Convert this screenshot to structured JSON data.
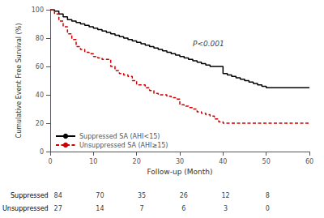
{
  "chart_data": {
    "type": "step",
    "xlabel": "Follow-up (Month)",
    "ylabel": "Cumulative Event Free Survival (%)",
    "xlim": [
      0,
      60
    ],
    "ylim": [
      0,
      100
    ],
    "xticks": [
      0,
      10,
      20,
      30,
      40,
      50,
      60
    ],
    "yticks": [
      0,
      20,
      40,
      60,
      80,
      100
    ],
    "grid": false,
    "legend": "lower left",
    "series": [
      {
        "name": "Suppressed SA (AHI<15)",
        "color": "#000000",
        "line_style": "solid",
        "x": [
          0,
          1,
          2,
          3,
          4,
          5,
          6,
          7,
          8,
          9,
          10,
          11,
          12,
          13,
          14,
          15,
          16,
          17,
          18,
          19,
          20,
          21,
          22,
          23,
          24,
          25,
          26,
          27,
          28,
          29,
          30,
          31,
          32,
          33,
          34,
          35,
          36,
          37,
          40,
          41,
          42,
          43,
          44,
          45,
          46,
          47,
          48,
          49,
          50,
          51,
          60
        ],
        "values": [
          100,
          99,
          97,
          95,
          93,
          92,
          91,
          90,
          89,
          88,
          87,
          86,
          85,
          84,
          83,
          82,
          81,
          80,
          79,
          78,
          77,
          76,
          75,
          74,
          73,
          72,
          71,
          70,
          69,
          68,
          67,
          66,
          65,
          64,
          63,
          62,
          61,
          60,
          55,
          54,
          53,
          52,
          51,
          50,
          49,
          48,
          47,
          46,
          45,
          45,
          45
        ]
      },
      {
        "name": "Unsuppressed SA (AHI≥15)",
        "color": "#cc0000",
        "line_style": "dashed",
        "x": [
          0,
          1,
          2,
          3,
          4,
          5,
          6,
          7,
          8,
          9,
          10,
          11,
          12,
          14,
          15,
          16,
          17,
          18,
          19,
          20,
          22,
          23,
          24,
          25,
          26,
          27,
          28,
          29,
          30,
          31,
          32,
          33,
          34,
          35,
          36,
          37,
          38,
          39,
          40,
          60
        ],
        "values": [
          100,
          97,
          92,
          88,
          83,
          79,
          74,
          72,
          70,
          69,
          67,
          66,
          65,
          60,
          57,
          55,
          54,
          53,
          50,
          47,
          45,
          43,
          41,
          40,
          40,
          39,
          38,
          37,
          33,
          32,
          31,
          30,
          28,
          27,
          26,
          25,
          23,
          21,
          20,
          20
        ]
      }
    ],
    "annotations": [
      {
        "text": "P<0.001",
        "x": 33,
        "y": 76
      }
    ],
    "at_risk": {
      "rows": [
        "Suppressed",
        "Unsuppressed"
      ],
      "x": [
        0,
        10,
        20,
        30,
        40,
        50
      ],
      "values": [
        [
          84,
          70,
          35,
          26,
          12,
          8
        ],
        [
          27,
          14,
          7,
          6,
          3,
          0
        ]
      ]
    }
  }
}
